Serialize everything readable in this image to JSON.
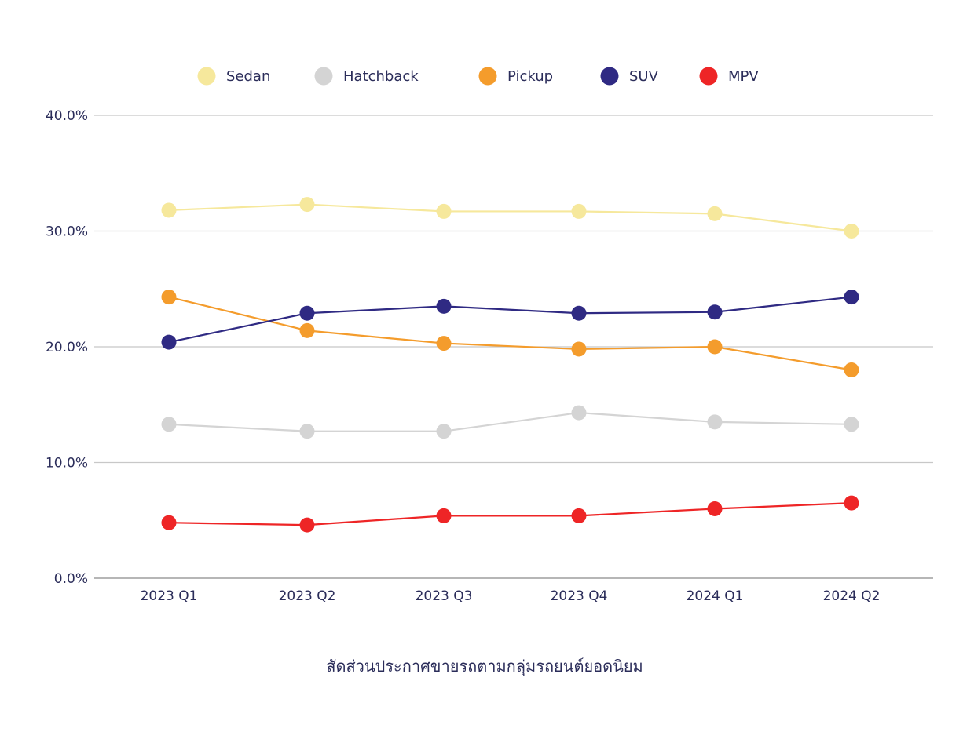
{
  "chart_data": {
    "type": "line",
    "title": "",
    "xlabel": "สัดส่วนประกาศขายรถตามกลุ่มรถยนต์ยอดนิยม",
    "ylabel": "",
    "categories": [
      "2023 Q1",
      "2023 Q2",
      "2023 Q3",
      "2023 Q4",
      "2024 Q1",
      "2024 Q2"
    ],
    "ylim": [
      0,
      40
    ],
    "yticks": [
      0,
      10,
      20,
      30,
      40
    ],
    "ytick_labels": [
      "0.0%",
      "10.0%",
      "20.0%",
      "30.0%",
      "40.0%"
    ],
    "grid": true,
    "legend": "top",
    "series": [
      {
        "name": "Sedan",
        "color": "#f6e89c",
        "values": [
          31.8,
          32.3,
          31.7,
          31.7,
          31.5,
          30.0
        ]
      },
      {
        "name": "Hatchback",
        "color": "#d4d4d4",
        "values": [
          13.3,
          12.7,
          12.7,
          14.3,
          13.5,
          13.3
        ]
      },
      {
        "name": "Pickup",
        "color": "#f49c2c",
        "values": [
          24.3,
          21.4,
          20.3,
          19.8,
          20.0,
          18.0
        ]
      },
      {
        "name": "SUV",
        "color": "#2f2a83",
        "values": [
          20.4,
          22.9,
          23.5,
          22.9,
          23.0,
          24.3
        ]
      },
      {
        "name": "MPV",
        "color": "#ee2526",
        "values": [
          4.8,
          4.6,
          5.4,
          5.4,
          6.0,
          6.5
        ]
      }
    ]
  }
}
